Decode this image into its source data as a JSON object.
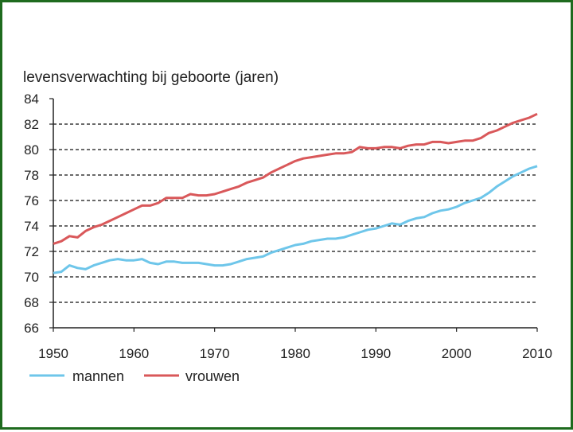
{
  "chart_data": {
    "type": "line",
    "ylabel": "levensverwachting bij geboorte (jaren)",
    "xlim": [
      1950,
      2010
    ],
    "ylim": [
      66,
      84
    ],
    "x_ticks": [
      1950,
      1960,
      1970,
      1980,
      1990,
      2000,
      2010
    ],
    "y_ticks": [
      66,
      68,
      70,
      72,
      74,
      76,
      78,
      80,
      82,
      84
    ],
    "grid": "horizontal dashed",
    "legend_position": "bottom-left",
    "series": [
      {
        "name": "mannen",
        "color": "#6ec6ea",
        "x": [
          1950,
          1951,
          1952,
          1953,
          1954,
          1955,
          1956,
          1957,
          1958,
          1959,
          1960,
          1961,
          1962,
          1963,
          1964,
          1965,
          1966,
          1967,
          1968,
          1969,
          1970,
          1971,
          1972,
          1973,
          1974,
          1975,
          1976,
          1977,
          1978,
          1979,
          1980,
          1981,
          1982,
          1983,
          1984,
          1985,
          1986,
          1987,
          1988,
          1989,
          1990,
          1991,
          1992,
          1993,
          1994,
          1995,
          1996,
          1997,
          1998,
          1999,
          2000,
          2001,
          2002,
          2003,
          2004,
          2005,
          2006,
          2007,
          2008,
          2009,
          2010
        ],
        "values": [
          70.3,
          70.4,
          70.9,
          70.7,
          70.6,
          70.9,
          71.1,
          71.3,
          71.4,
          71.3,
          71.3,
          71.4,
          71.1,
          71.0,
          71.2,
          71.2,
          71.1,
          71.1,
          71.1,
          71.0,
          70.9,
          70.9,
          71.0,
          71.2,
          71.4,
          71.5,
          71.6,
          71.9,
          72.1,
          72.3,
          72.5,
          72.6,
          72.8,
          72.9,
          73.0,
          73.0,
          73.1,
          73.3,
          73.5,
          73.7,
          73.8,
          74.0,
          74.2,
          74.1,
          74.4,
          74.6,
          74.7,
          75.0,
          75.2,
          75.3,
          75.5,
          75.8,
          76.0,
          76.2,
          76.6,
          77.1,
          77.5,
          77.9,
          78.2,
          78.5,
          78.7
        ]
      },
      {
        "name": "vrouwen",
        "color": "#d9585a",
        "x": [
          1950,
          1951,
          1952,
          1953,
          1954,
          1955,
          1956,
          1957,
          1958,
          1959,
          1960,
          1961,
          1962,
          1963,
          1964,
          1965,
          1966,
          1967,
          1968,
          1969,
          1970,
          1971,
          1972,
          1973,
          1974,
          1975,
          1976,
          1977,
          1978,
          1979,
          1980,
          1981,
          1982,
          1983,
          1984,
          1985,
          1986,
          1987,
          1988,
          1989,
          1990,
          1991,
          1992,
          1993,
          1994,
          1995,
          1996,
          1997,
          1998,
          1999,
          2000,
          2001,
          2002,
          2003,
          2004,
          2005,
          2006,
          2007,
          2008,
          2009,
          2010
        ],
        "values": [
          72.6,
          72.8,
          73.2,
          73.1,
          73.6,
          73.9,
          74.1,
          74.4,
          74.7,
          75.0,
          75.3,
          75.6,
          75.6,
          75.8,
          76.2,
          76.2,
          76.2,
          76.5,
          76.4,
          76.4,
          76.5,
          76.7,
          76.9,
          77.1,
          77.4,
          77.6,
          77.8,
          78.2,
          78.5,
          78.8,
          79.1,
          79.3,
          79.4,
          79.5,
          79.6,
          79.7,
          79.7,
          79.8,
          80.2,
          80.1,
          80.1,
          80.2,
          80.2,
          80.1,
          80.3,
          80.4,
          80.4,
          80.6,
          80.6,
          80.5,
          80.6,
          80.7,
          80.7,
          80.9,
          81.3,
          81.5,
          81.8,
          82.1,
          82.3,
          82.5,
          82.8
        ]
      }
    ]
  }
}
